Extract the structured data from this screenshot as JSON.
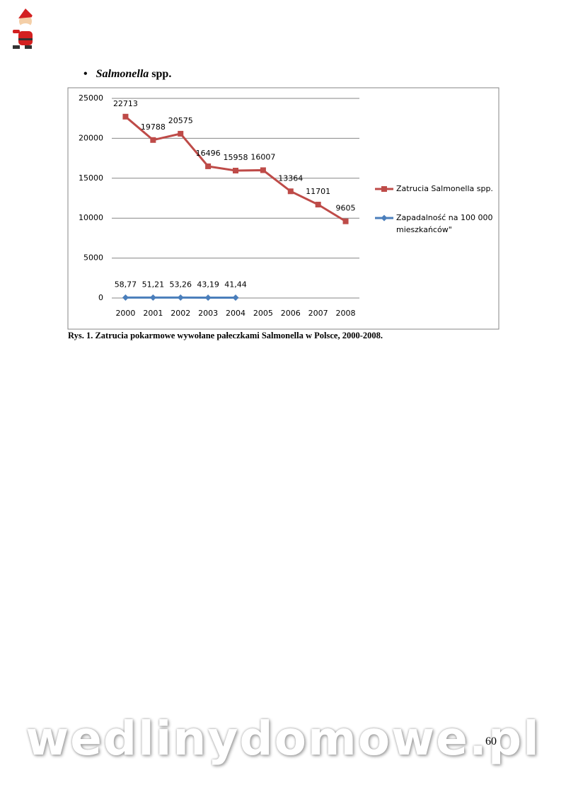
{
  "heading": {
    "italic": "Salmonella",
    "rest": "spp."
  },
  "chart_data": {
    "type": "line",
    "categories": [
      "2000",
      "2001",
      "2002",
      "2003",
      "2004",
      "2005",
      "2006",
      "2007",
      "2008"
    ],
    "series": [
      {
        "name": "Zatrucia Salmonella spp.",
        "color": "#be4b48",
        "marker": "square",
        "values": [
          22713,
          19788,
          20575,
          16496,
          15958,
          16007,
          13364,
          11701,
          9605
        ]
      },
      {
        "name": "Zapadalność na 100 000 mieszkańców\"",
        "color": "#4a7ebb",
        "marker": "diamond",
        "values": [
          58.77,
          51.21,
          53.26,
          43.19,
          41.44,
          null,
          null,
          null,
          null
        ],
        "value_labels": [
          "58,77",
          "51,21",
          "53,26",
          "43,19",
          "41,44",
          null,
          null,
          null,
          null
        ]
      }
    ],
    "ylim": [
      0,
      25000
    ],
    "yticks": [
      0,
      5000,
      10000,
      15000,
      20000,
      25000
    ],
    "grid": true,
    "legend": "right"
  },
  "caption": "Rys. 1. Zatrucia pokarmowe wywołane pałeczkami Salmonella w Polsce, 2000-2008.",
  "page_number": "60",
  "watermark": "wedlinydomowe.pl"
}
